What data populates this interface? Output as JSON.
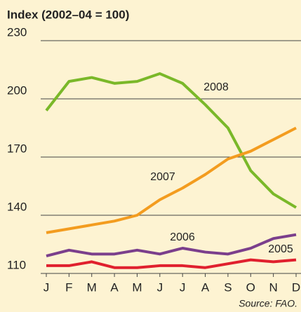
{
  "chart_data": {
    "type": "line",
    "title": "Index (2002–04 = 100)",
    "source": "Source: FAO.",
    "categories": [
      "J",
      "F",
      "M",
      "A",
      "M",
      "J",
      "J",
      "A",
      "S",
      "O",
      "N",
      "D"
    ],
    "ylim": [
      110,
      230
    ],
    "yticks": [
      110,
      140,
      170,
      200,
      230
    ],
    "grid": true,
    "series": [
      {
        "name": "2008",
        "color": "#7ab829",
        "values": [
          194,
          209,
          211,
          208,
          209,
          213,
          208,
          197,
          185,
          163,
          151,
          144
        ]
      },
      {
        "name": "2007",
        "color": "#f39c1f",
        "values": [
          131,
          133,
          135,
          137,
          140,
          148,
          154,
          161,
          169,
          173,
          179,
          185
        ]
      },
      {
        "name": "2006",
        "color": "#7b3f8c",
        "values": [
          119,
          122,
          120,
          120,
          122,
          120,
          123,
          121,
          120,
          123,
          128,
          130
        ]
      },
      {
        "name": "2005",
        "color": "#e0202e",
        "values": [
          114,
          114,
          116,
          113,
          113,
          114,
          114,
          113,
          115,
          117,
          116,
          117
        ]
      }
    ]
  }
}
